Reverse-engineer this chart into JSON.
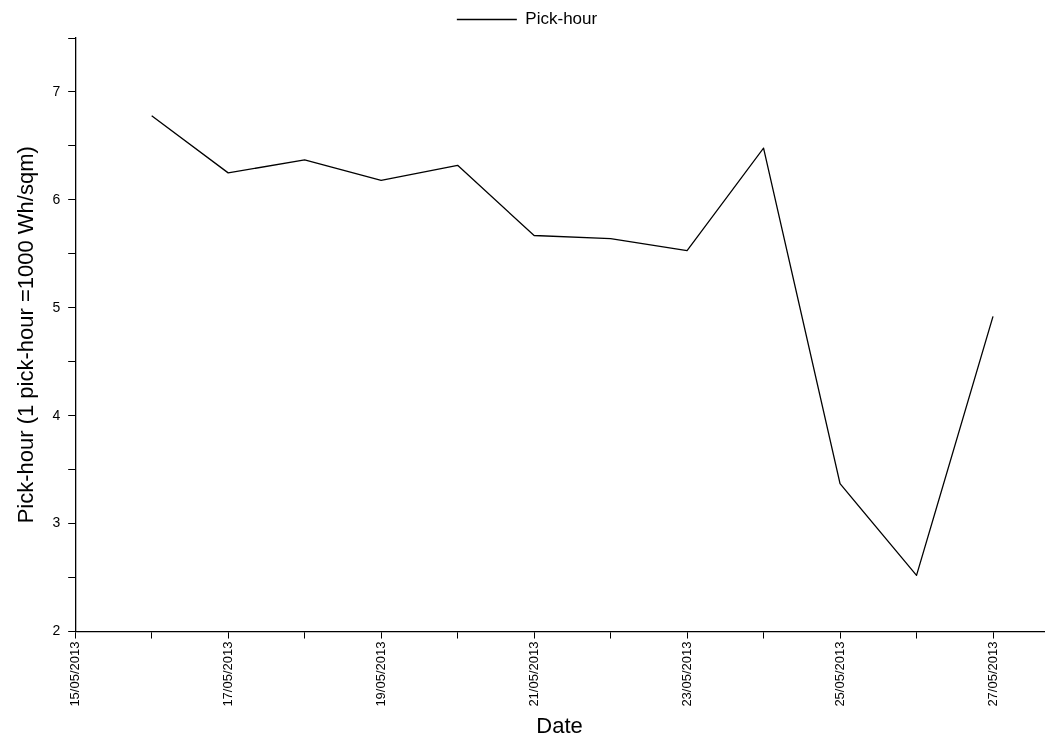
{
  "chart_data": {
    "type": "line",
    "xlabel": "Date",
    "ylabel": "Pick-hour (1 pick-hour =1000 Wh/sqm)",
    "x": [
      "2013-05-16",
      "2013-05-17",
      "2013-05-18",
      "2013-05-19",
      "2013-05-20",
      "2013-05-21",
      "2013-05-22",
      "2013-05-23",
      "2013-05-24",
      "2013-05-25",
      "2013-05-26",
      "2013-05-27"
    ],
    "series": [
      {
        "name": "Pick-hour",
        "color": "#000000",
        "values": [
          6.78,
          6.25,
          6.37,
          6.18,
          6.32,
          5.67,
          5.64,
          5.53,
          6.48,
          3.37,
          2.52,
          4.92
        ]
      }
    ],
    "xlim": [
      "2013-05-15",
      "2013-05-27T16:00"
    ],
    "xticks": [
      {
        "value": "2013-05-15",
        "label": "15/05/2013"
      },
      {
        "value": "2013-05-16",
        "label": null
      },
      {
        "value": "2013-05-17",
        "label": "17/05/2013"
      },
      {
        "value": "2013-05-18",
        "label": null
      },
      {
        "value": "2013-05-19",
        "label": "19/05/2013"
      },
      {
        "value": "2013-05-20",
        "label": null
      },
      {
        "value": "2013-05-21",
        "label": "21/05/2013"
      },
      {
        "value": "2013-05-22",
        "label": null
      },
      {
        "value": "2013-05-23",
        "label": "23/05/2013"
      },
      {
        "value": "2013-05-24",
        "label": null
      },
      {
        "value": "2013-05-25",
        "label": "25/05/2013"
      },
      {
        "value": "2013-05-26",
        "label": null
      },
      {
        "value": "2013-05-27",
        "label": "27/05/2013"
      }
    ],
    "ylim": [
      2,
      7.5
    ],
    "yticks": [
      2,
      {
        "value": 2.5,
        "label": null
      },
      3,
      {
        "value": 3.5,
        "label": null
      },
      4,
      {
        "value": 4.5,
        "label": null
      },
      5,
      {
        "value": 5.5,
        "label": null
      },
      6,
      {
        "value": 6.5,
        "label": null
      },
      7,
      {
        "value": 7.5,
        "label": null
      }
    ],
    "legend": "top",
    "grid": false,
    "marker": "none",
    "line_style": "solid"
  }
}
